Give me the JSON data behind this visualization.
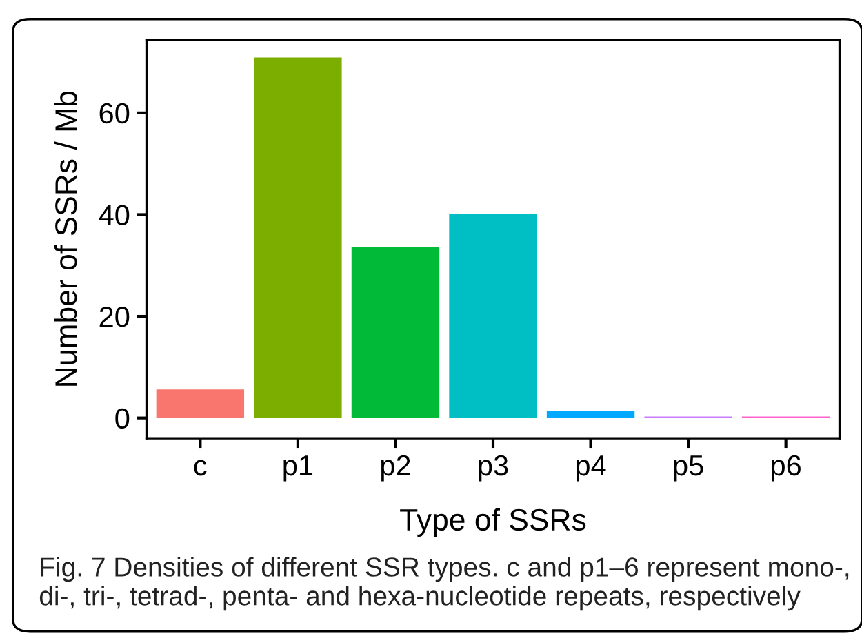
{
  "chart_data": {
    "type": "bar",
    "xlabel": "Type of SSRs",
    "ylabel": "Number of SSRs / Mb",
    "categories": [
      "c",
      "p1",
      "p2",
      "p3",
      "p4",
      "p5",
      "p6"
    ],
    "values": [
      5.6,
      70.9,
      33.7,
      40.2,
      1.4,
      0.3,
      0.3
    ],
    "colors": [
      "#f8766d",
      "#7cae00",
      "#00ba38",
      "#00bfc4",
      "#00a9ff",
      "#c77cff",
      "#ff61cc"
    ],
    "ylim": [
      -4,
      74.3
    ],
    "yticks": [
      0,
      20,
      40,
      60
    ],
    "grid": false,
    "annotations": [
      "Fig. 7 Densities of different SSR types. c and p1–6 represent mono-, di-, tri-, tetrad-, penta- and hexa-nucleotide repeats, respectively"
    ]
  }
}
